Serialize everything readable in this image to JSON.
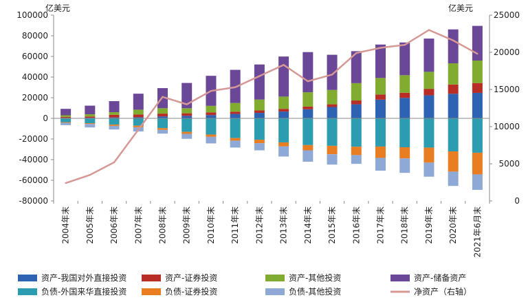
{
  "chart_data": {
    "type": "bar",
    "stacked": true,
    "y_left_unit": "亿美元",
    "y_right_unit": "亿美元",
    "ylim_left": [
      -80000,
      100000
    ],
    "ylim_right": [
      0,
      25000
    ],
    "y_left_ticks": [
      "100000",
      "80000",
      "60000",
      "40000",
      "20000",
      "0",
      "-20000",
      "-40000",
      "-60000",
      "-80000"
    ],
    "y_right_ticks": [
      "25000",
      "20000",
      "15000",
      "10000",
      "5000",
      "0"
    ],
    "categories": [
      "2004年末",
      "2005年末",
      "2006年末",
      "2007年末",
      "2008年末",
      "2009年末",
      "2010年末",
      "2011年末",
      "2012年末",
      "2013年末",
      "2014年末",
      "2015年末",
      "2016年末",
      "2017年末",
      "2018年末",
      "2019年末",
      "2020年末",
      "2021年6月末"
    ],
    "asset_series": [
      {
        "name": "资产-我国对外直接投资",
        "color": "#2e63b4",
        "values": [
          500,
          600,
          900,
          1100,
          1900,
          2500,
          3200,
          4300,
          5300,
          6600,
          8800,
          11000,
          13600,
          18100,
          19800,
          22300,
          23800,
          24700
        ]
      },
      {
        "name": "资产-证券投资",
        "color": "#b82e26",
        "values": [
          900,
          1200,
          2600,
          2600,
          2700,
          2400,
          2600,
          2100,
          2400,
          2600,
          2600,
          2600,
          3700,
          5000,
          5000,
          6300,
          9000,
          9500
        ]
      },
      {
        "name": "资产-其他投资",
        "color": "#82ac2f",
        "values": [
          1600,
          2200,
          2500,
          4700,
          5200,
          4900,
          6300,
          8500,
          10500,
          11900,
          13900,
          13900,
          16800,
          16000,
          17000,
          16500,
          20500,
          21800
        ]
      },
      {
        "name": "资产-储备资产",
        "color": "#6a4797",
        "values": [
          6200,
          8300,
          10700,
          15500,
          19500,
          24500,
          29100,
          32100,
          34000,
          38800,
          38900,
          34100,
          31000,
          32400,
          31700,
          32200,
          32900,
          33600
        ]
      }
    ],
    "liability_series": [
      {
        "name": "负债-外国来华直接投资",
        "color": "#2c9db1",
        "values": [
          -3700,
          -4700,
          -6100,
          -7100,
          -9500,
          -13100,
          -15700,
          -19100,
          -20700,
          -23300,
          -25900,
          -26600,
          -27500,
          -27300,
          -28000,
          -28400,
          -32000,
          -33300
        ]
      },
      {
        "name": "负债-证券投资",
        "color": "#e87d22",
        "values": [
          -600,
          -800,
          -1200,
          -1500,
          -1700,
          -1900,
          -2200,
          -2500,
          -3400,
          -3900,
          -5100,
          -8200,
          -8100,
          -11000,
          -10800,
          -14500,
          -19600,
          -21000
        ]
      },
      {
        "name": "负债-其他投资",
        "color": "#8fa9d6",
        "values": [
          -2300,
          -3300,
          -3500,
          -4100,
          -3600,
          -4800,
          -6400,
          -6700,
          -6900,
          -9800,
          -11000,
          -10000,
          -8500,
          -12400,
          -14000,
          -13600,
          -13900,
          -15000
        ]
      }
    ],
    "line_series": {
      "name": "净资产（右轴）",
      "axis": "right",
      "color": "#d69895",
      "values": [
        2400,
        3500,
        5200,
        9600,
        14000,
        13000,
        14800,
        15300,
        16800,
        18300,
        16100,
        17000,
        19900,
        20600,
        21000,
        23000,
        21600,
        19800
      ]
    },
    "legend": [
      {
        "name": "资产-我国对外直接投资",
        "color": "#2e63b4",
        "type": "bar"
      },
      {
        "name": "资产-证券投资",
        "color": "#b82e26",
        "type": "bar"
      },
      {
        "name": "资产-其他投资",
        "color": "#82ac2f",
        "type": "bar"
      },
      {
        "name": "资产-储备资产",
        "color": "#6a4797",
        "type": "bar"
      },
      {
        "name": "负债-外国来华直接投资",
        "color": "#2c9db1",
        "type": "bar"
      },
      {
        "name": "负债-证券投资",
        "color": "#e87d22",
        "type": "bar"
      },
      {
        "name": "负债-其他投资",
        "color": "#8fa9d6",
        "type": "bar"
      },
      {
        "name": "净资产（右轴）",
        "color": "#d69895",
        "type": "line"
      }
    ],
    "legend_position": "bottom",
    "grid": false
  }
}
